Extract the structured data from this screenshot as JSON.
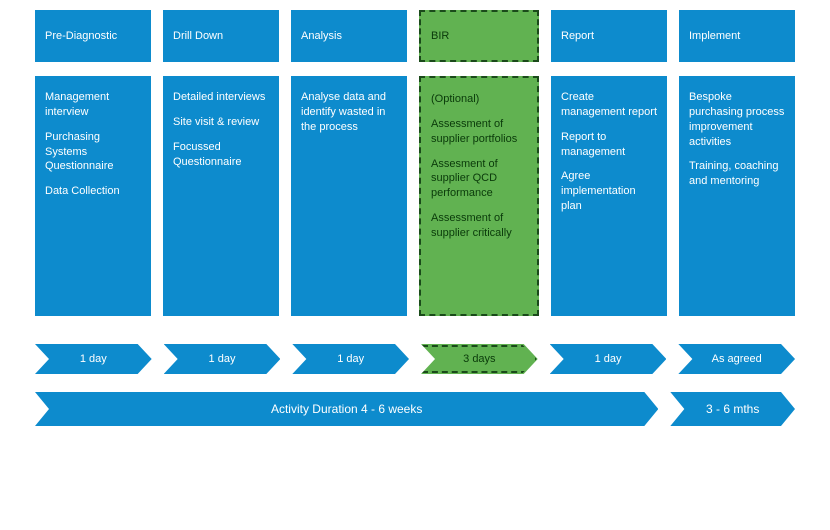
{
  "colors": {
    "blue": "#0d8bcd",
    "green": "#61b251",
    "green_text": "#0a3a0a",
    "dash": "#1a4a1a",
    "white": "#ffffff"
  },
  "phases": [
    {
      "title": "Pre-Diagnostic",
      "variant": "blue",
      "details": [
        "Management interview",
        "Purchasing Systems Questionnaire",
        "Data Collection"
      ],
      "duration": "1 day",
      "dur_variant": "blue"
    },
    {
      "title": "Drill Down",
      "variant": "blue",
      "details": [
        "Detailed interviews",
        "Site visit & review",
        "Focussed Questionnaire"
      ],
      "duration": "1 day",
      "dur_variant": "blue"
    },
    {
      "title": "Analysis",
      "variant": "blue",
      "details": [
        "Analyse data and identify wasted in the process"
      ],
      "duration": "1 day",
      "dur_variant": "blue"
    },
    {
      "title": "BIR",
      "variant": "green",
      "details": [
        "(Optional)",
        "Assessment of supplier portfolios",
        "Assesment of supplier QCD performance",
        "Assessment of supplier critically"
      ],
      "duration": "3 days",
      "dur_variant": "green"
    },
    {
      "title": "Report",
      "variant": "blue",
      "details": [
        "Create management report",
        "Report to management",
        "Agree implementation plan"
      ],
      "duration": "1 day",
      "dur_variant": "blue"
    },
    {
      "title": "Implement",
      "variant": "blue",
      "details": [
        "Bespoke purchasing process improvement activities",
        "Training, coaching and mentoring"
      ],
      "duration": "As agreed",
      "dur_variant": "blue"
    }
  ],
  "summary": {
    "main": "Activity Duration 4 - 6 weeks",
    "tail": "3 - 6 mths"
  }
}
